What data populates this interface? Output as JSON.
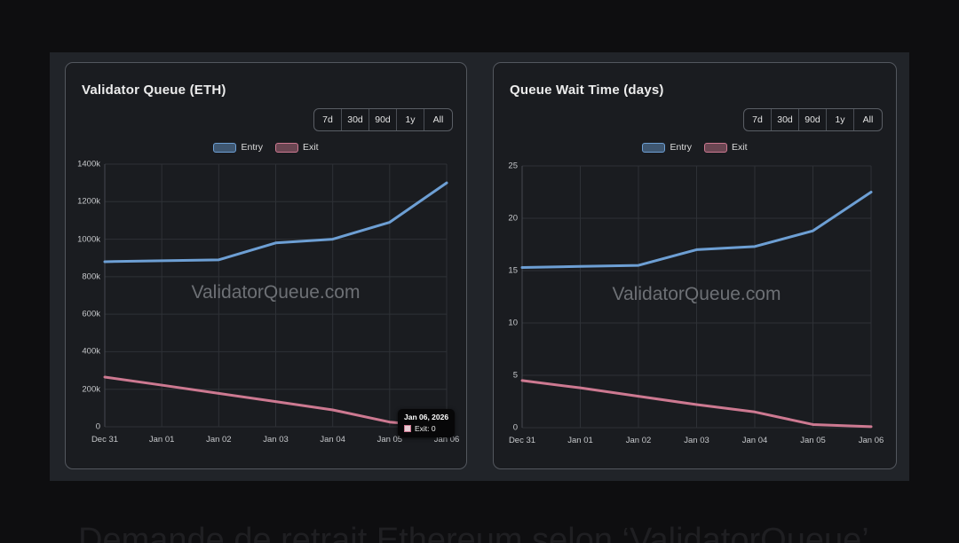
{
  "caption": "Demande de retrait Ethereum selon ‘ValidatorQueue’",
  "chart_data": [
    {
      "type": "line",
      "title": "Validator Queue (ETH)",
      "range_buttons": [
        "7d",
        "30d",
        "90d",
        "1y",
        "All"
      ],
      "watermark": "ValidatorQueue.com",
      "legend_position": "top-center",
      "grid": true,
      "unit": "ETH, k = thousands",
      "categories": [
        "Dec 31",
        "Jan 01",
        "Jan 02",
        "Jan 03",
        "Jan 04",
        "Jan 05",
        "Jan 06"
      ],
      "ylim": [
        0,
        1400
      ],
      "ytick_labels": [
        "1400k",
        "1200k",
        "1000k",
        "800k",
        "600k",
        "400k",
        "200k",
        "0"
      ],
      "series": [
        {
          "name": "Entry",
          "color": "#6d9fd4",
          "fill": "rgba(109,159,212,0.45)",
          "values": [
            880,
            885,
            890,
            980,
            1000,
            1090,
            1300
          ]
        },
        {
          "name": "Exit",
          "color": "#cd7991",
          "fill": "rgba(205,121,145,0.45)",
          "values": [
            265,
            222,
            178,
            134,
            90,
            25,
            0
          ]
        }
      ],
      "tooltip": {
        "title": "Jan 06, 2026",
        "text": "Exit: 0",
        "series": "Exit",
        "point_index": 6
      }
    },
    {
      "type": "line",
      "title": "Queue Wait Time (days)",
      "range_buttons": [
        "7d",
        "30d",
        "90d",
        "1y",
        "All"
      ],
      "watermark": "ValidatorQueue.com",
      "legend_position": "top-center",
      "grid": true,
      "unit": "days",
      "categories": [
        "Dec 31",
        "Jan 01",
        "Jan 02",
        "Jan 03",
        "Jan 04",
        "Jan 05",
        "Jan 06"
      ],
      "ylim": [
        0,
        25
      ],
      "ytick_labels": [
        "25",
        "20",
        "15",
        "10",
        "5",
        "0"
      ],
      "series": [
        {
          "name": "Entry",
          "color": "#6d9fd4",
          "fill": "rgba(109,159,212,0.45)",
          "values": [
            15.3,
            15.4,
            15.5,
            17,
            17.3,
            18.8,
            22.5
          ]
        },
        {
          "name": "Exit",
          "color": "#cd7991",
          "fill": "rgba(205,121,145,0.45)",
          "values": [
            4.5,
            3.8,
            3,
            2.2,
            1.5,
            0.3,
            0.1
          ]
        }
      ]
    }
  ]
}
